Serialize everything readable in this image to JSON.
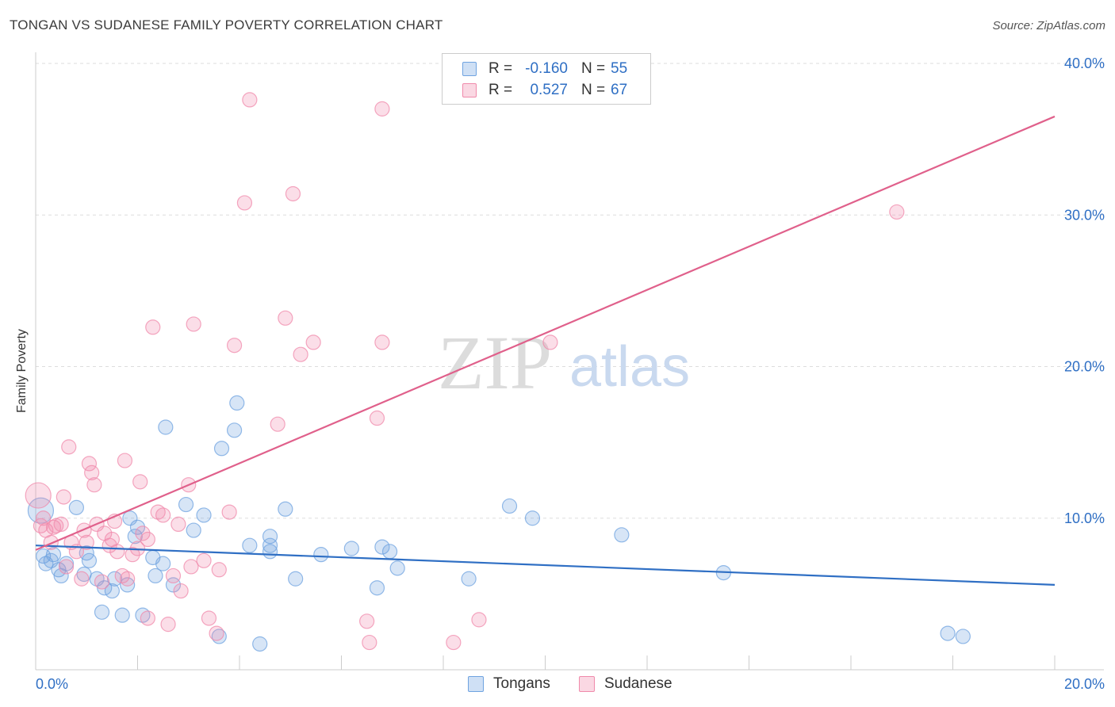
{
  "header": {
    "title": "TONGAN VS SUDANESE FAMILY POVERTY CORRELATION CHART",
    "source": "Source: ZipAtlas.com"
  },
  "watermark": {
    "zip": "ZIP",
    "atlas": "atlas"
  },
  "legend": {
    "rows": [
      {
        "r_label": "R =",
        "r_value": "-0.160",
        "n_label": "N =",
        "n_value": "55",
        "color": "#6fa3e0"
      },
      {
        "r_label": "R =",
        "r_value": "0.527",
        "n_label": "N =",
        "n_value": "67",
        "color": "#f08aab"
      }
    ]
  },
  "bottom_legend": [
    {
      "label": "Tongans",
      "color": "#6fa3e0"
    },
    {
      "label": "Sudanese",
      "color": "#f08aab"
    }
  ],
  "chart_data": {
    "type": "scatter",
    "title": "TONGAN VS SUDANESE FAMILY POVERTY CORRELATION CHART",
    "xlabel": "",
    "ylabel": "Family Poverty",
    "xlim": [
      0,
      20
    ],
    "ylim": [
      0,
      40
    ],
    "x_tick_labels": [
      {
        "value": 0,
        "label": "0.0%"
      },
      {
        "value": 20,
        "label": "20.0%"
      }
    ],
    "y_tick_labels": [
      {
        "value": 10,
        "label": "10.0%"
      },
      {
        "value": 20,
        "label": "20.0%"
      },
      {
        "value": 30,
        "label": "30.0%"
      },
      {
        "value": 40,
        "label": "40.0%"
      }
    ],
    "grid": "horizontal dashed",
    "legend_position": "top-center",
    "series": [
      {
        "name": "Tongans",
        "color": "#6fa3e0",
        "line_color": "#2f6fc4",
        "trend": {
          "x": [
            0,
            20
          ],
          "y": [
            8.2,
            5.6
          ]
        },
        "points": [
          [
            0.1,
            10.5
          ],
          [
            0.15,
            7.5
          ],
          [
            0.2,
            7.0
          ],
          [
            0.3,
            7.2
          ],
          [
            0.35,
            7.6
          ],
          [
            0.45,
            6.6
          ],
          [
            0.5,
            6.2
          ],
          [
            0.6,
            7.0
          ],
          [
            0.8,
            10.7
          ],
          [
            0.95,
            6.3
          ],
          [
            1.0,
            7.7
          ],
          [
            1.05,
            7.2
          ],
          [
            1.2,
            6.0
          ],
          [
            1.3,
            3.8
          ],
          [
            1.35,
            5.4
          ],
          [
            1.5,
            5.2
          ],
          [
            1.55,
            6.0
          ],
          [
            1.7,
            3.6
          ],
          [
            1.8,
            5.6
          ],
          [
            1.85,
            10.0
          ],
          [
            1.95,
            8.8
          ],
          [
            2.0,
            9.4
          ],
          [
            2.1,
            3.6
          ],
          [
            2.3,
            7.4
          ],
          [
            2.35,
            6.2
          ],
          [
            2.5,
            7.0
          ],
          [
            2.55,
            16.0
          ],
          [
            2.7,
            5.6
          ],
          [
            2.95,
            10.9
          ],
          [
            3.1,
            9.2
          ],
          [
            3.3,
            10.2
          ],
          [
            3.6,
            2.2
          ],
          [
            3.65,
            14.6
          ],
          [
            3.9,
            15.8
          ],
          [
            3.95,
            17.6
          ],
          [
            4.2,
            8.2
          ],
          [
            4.4,
            1.7
          ],
          [
            4.6,
            8.8
          ],
          [
            4.6,
            8.2
          ],
          [
            4.6,
            7.8
          ],
          [
            4.9,
            10.6
          ],
          [
            5.1,
            6.0
          ],
          [
            5.6,
            7.6
          ],
          [
            6.2,
            8.0
          ],
          [
            6.7,
            5.4
          ],
          [
            6.8,
            8.1
          ],
          [
            6.95,
            7.8
          ],
          [
            7.1,
            6.7
          ],
          [
            8.5,
            6.0
          ],
          [
            9.3,
            10.8
          ],
          [
            9.75,
            10.0
          ],
          [
            11.5,
            8.9
          ],
          [
            13.5,
            6.4
          ],
          [
            17.9,
            2.4
          ],
          [
            18.2,
            2.2
          ]
        ]
      },
      {
        "name": "Sudanese",
        "color": "#f08aab",
        "line_color": "#e0608b",
        "trend": {
          "x": [
            0,
            20
          ],
          "y": [
            7.9,
            36.5
          ]
        },
        "points": [
          [
            0.05,
            11.5
          ],
          [
            0.1,
            9.5
          ],
          [
            0.15,
            10.0
          ],
          [
            0.2,
            9.2
          ],
          [
            0.3,
            8.4
          ],
          [
            0.35,
            9.4
          ],
          [
            0.4,
            9.5
          ],
          [
            0.5,
            9.6
          ],
          [
            0.55,
            11.4
          ],
          [
            0.6,
            6.8
          ],
          [
            0.65,
            14.7
          ],
          [
            0.7,
            8.4
          ],
          [
            0.8,
            7.8
          ],
          [
            0.9,
            6.0
          ],
          [
            0.95,
            9.2
          ],
          [
            1.0,
            8.4
          ],
          [
            1.05,
            13.6
          ],
          [
            1.1,
            13.0
          ],
          [
            1.15,
            12.2
          ],
          [
            1.2,
            9.6
          ],
          [
            1.3,
            5.8
          ],
          [
            1.35,
            9.0
          ],
          [
            1.45,
            8.2
          ],
          [
            1.5,
            8.6
          ],
          [
            1.55,
            9.8
          ],
          [
            1.6,
            7.8
          ],
          [
            1.7,
            6.2
          ],
          [
            1.75,
            13.8
          ],
          [
            1.8,
            6.0
          ],
          [
            1.9,
            7.6
          ],
          [
            2.0,
            8.0
          ],
          [
            2.05,
            12.4
          ],
          [
            2.1,
            9.0
          ],
          [
            2.2,
            8.6
          ],
          [
            2.2,
            3.4
          ],
          [
            2.3,
            22.6
          ],
          [
            2.4,
            10.4
          ],
          [
            2.5,
            10.2
          ],
          [
            2.6,
            3.0
          ],
          [
            2.7,
            6.2
          ],
          [
            2.8,
            9.6
          ],
          [
            2.85,
            5.2
          ],
          [
            3.0,
            12.2
          ],
          [
            3.05,
            6.8
          ],
          [
            3.1,
            22.8
          ],
          [
            3.3,
            7.2
          ],
          [
            3.4,
            3.4
          ],
          [
            3.55,
            2.4
          ],
          [
            3.6,
            6.6
          ],
          [
            3.8,
            10.4
          ],
          [
            3.9,
            21.4
          ],
          [
            4.1,
            30.8
          ],
          [
            4.2,
            37.6
          ],
          [
            4.75,
            16.2
          ],
          [
            4.9,
            23.2
          ],
          [
            5.05,
            31.4
          ],
          [
            5.2,
            20.8
          ],
          [
            5.45,
            21.6
          ],
          [
            6.5,
            3.2
          ],
          [
            6.55,
            1.8
          ],
          [
            6.7,
            16.6
          ],
          [
            6.8,
            21.6
          ],
          [
            6.8,
            37.0
          ],
          [
            8.2,
            1.8
          ],
          [
            8.7,
            3.3
          ],
          [
            10.1,
            21.6
          ],
          [
            16.9,
            30.2
          ]
        ]
      }
    ]
  }
}
